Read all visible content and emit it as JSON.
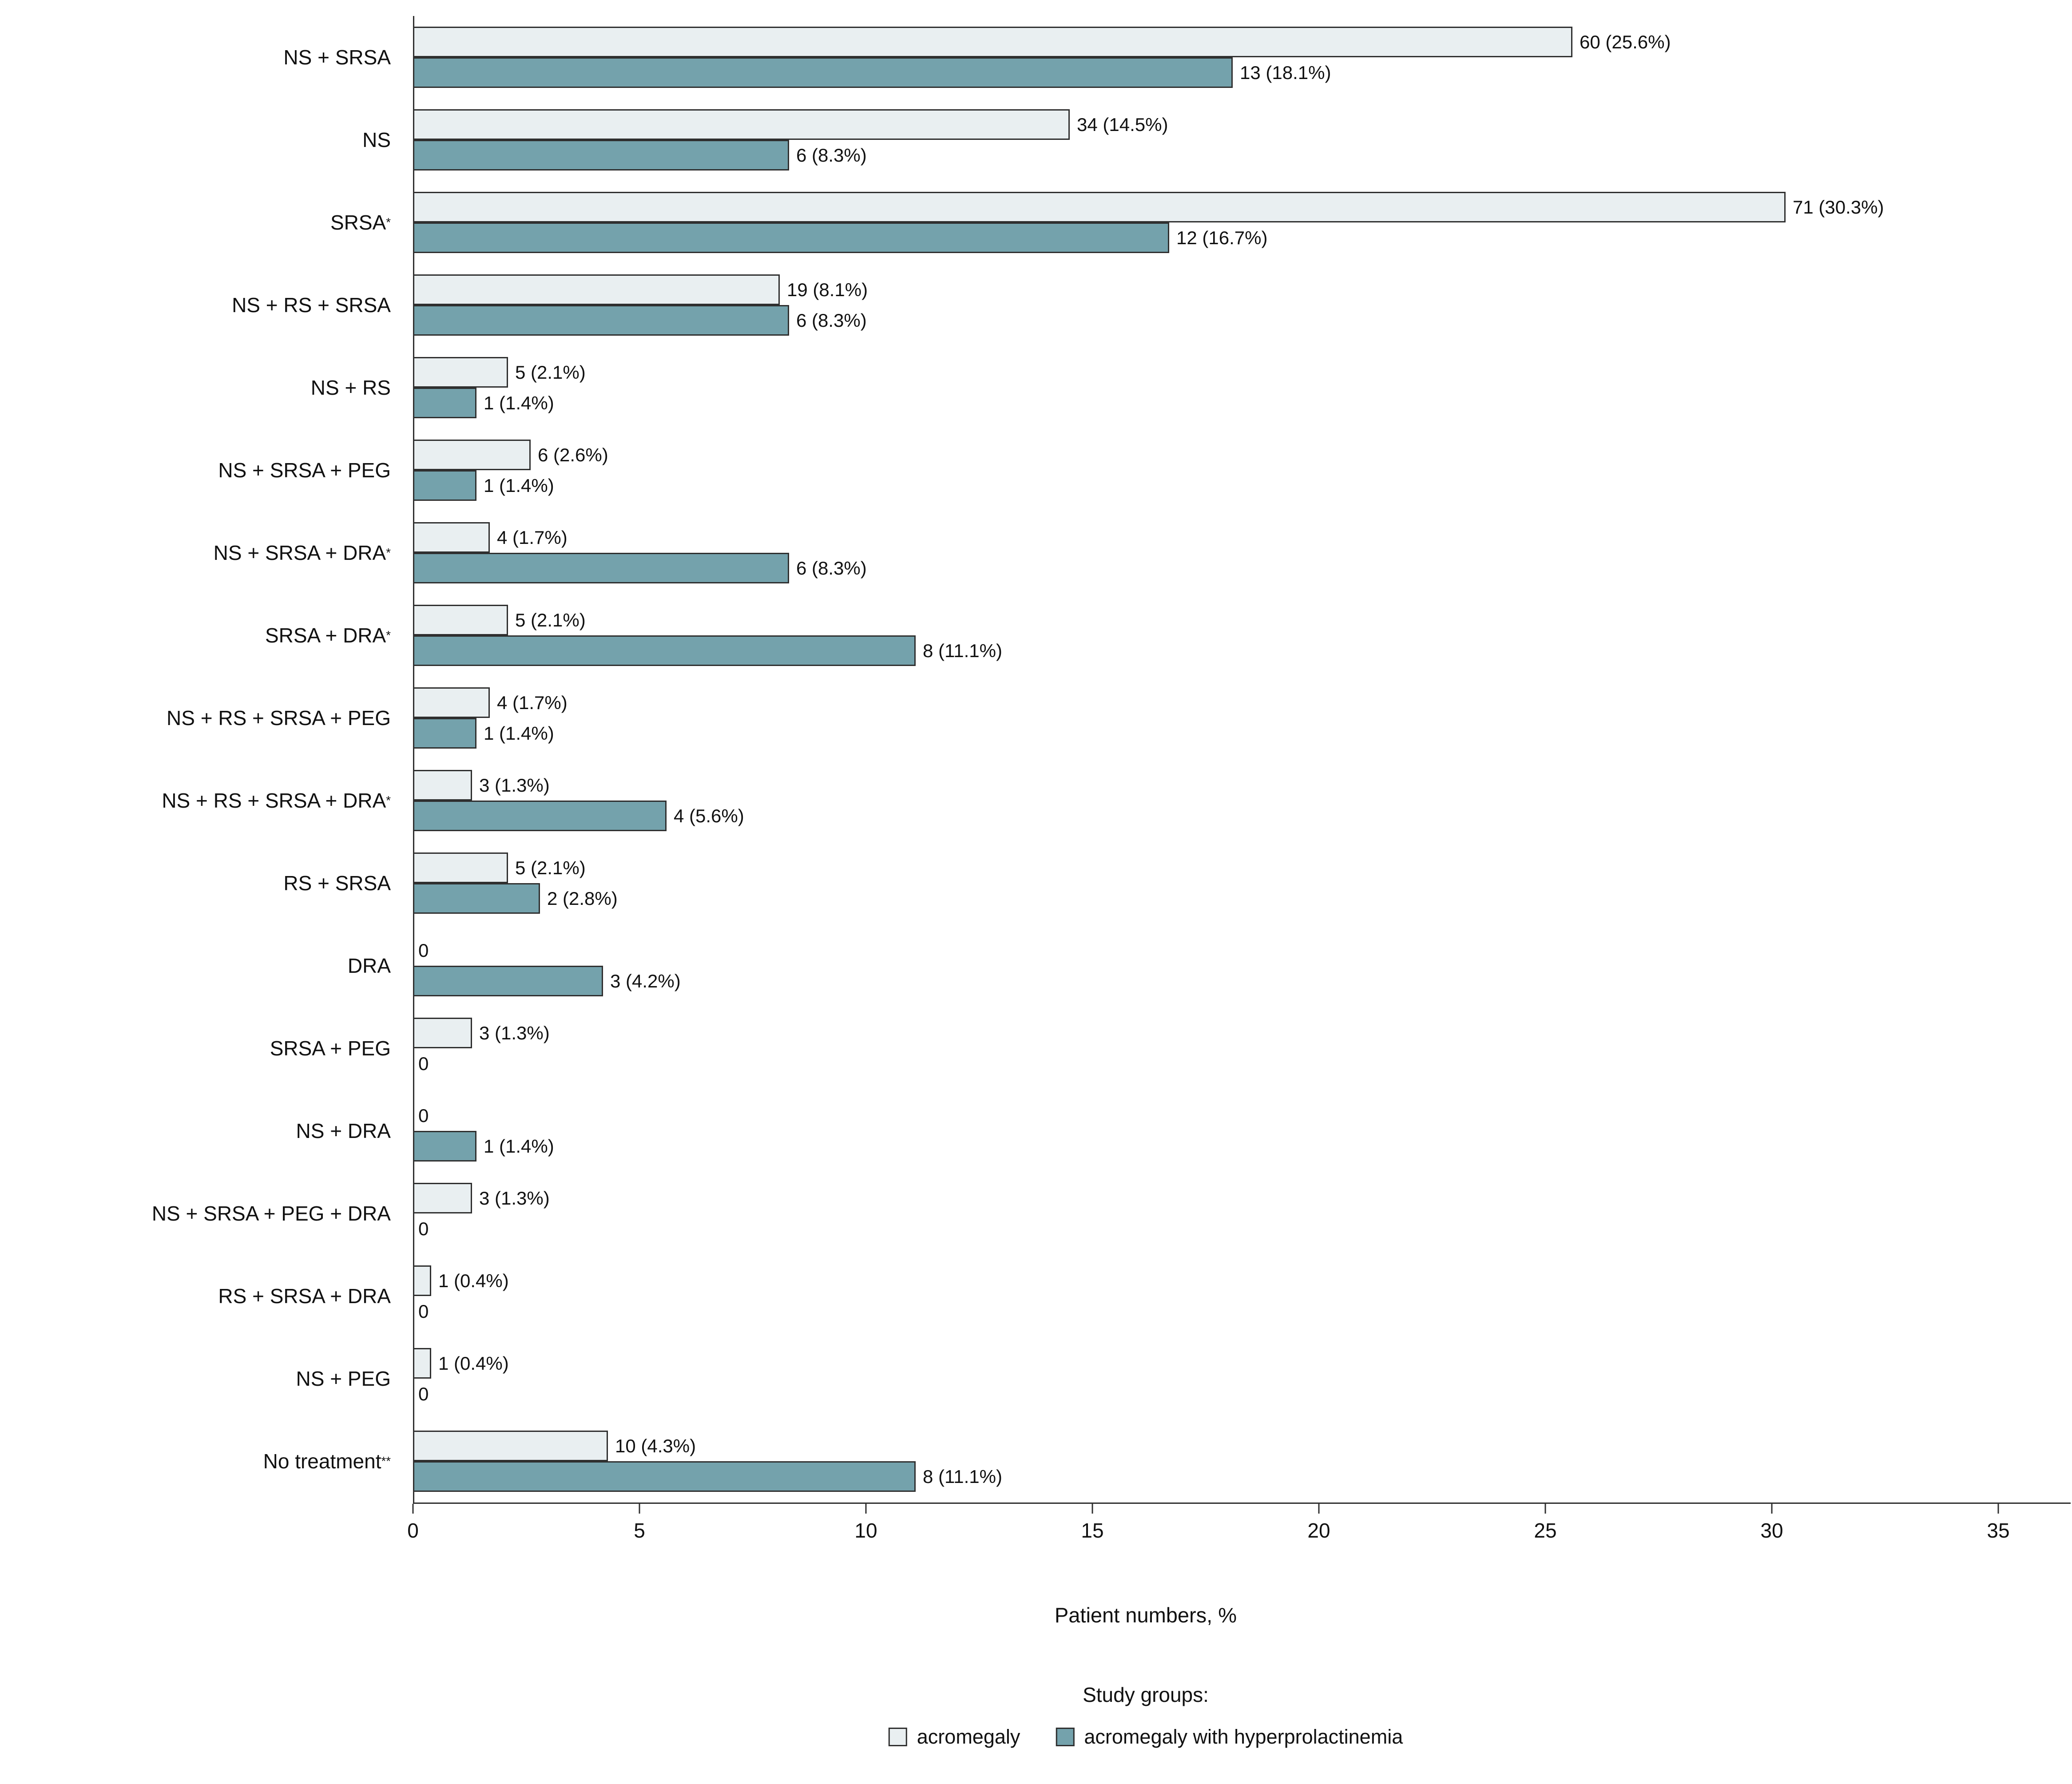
{
  "chart_data": {
    "type": "bar",
    "orientation": "horizontal",
    "title": "",
    "xlabel": "Patient numbers, %",
    "ylabel": "",
    "xlim": [
      0,
      36.5
    ],
    "xticks": [
      0,
      5,
      10,
      15,
      20,
      25,
      30,
      35
    ],
    "grid": false,
    "legend_position": "bottom",
    "legend_title": "Study groups:",
    "categories": [
      "NS + SRSA",
      "NS",
      "SRSA*",
      "NS + RS + SRSA",
      "NS + RS",
      "NS + SRSA + PEG",
      "NS + SRSA + DRA*",
      "SRSA + DRA*",
      "NS + RS + SRSA + PEG",
      "NS + RS + SRSA + DRA*",
      "RS + SRSA",
      "DRA",
      "SRSA + PEG",
      "NS + DRA",
      "NS + SRSA + PEG + DRA",
      "RS + SRSA + DRA",
      "NS + PEG",
      "No treatment**"
    ],
    "series": [
      {
        "name": "acromegaly",
        "color": "#e9eff1",
        "counts": [
          60,
          34,
          71,
          19,
          5,
          6,
          4,
          5,
          4,
          3,
          5,
          0,
          3,
          0,
          3,
          1,
          1,
          10
        ],
        "values": [
          25.6,
          14.5,
          30.3,
          8.1,
          2.1,
          2.6,
          1.7,
          2.1,
          1.7,
          1.3,
          2.1,
          0,
          1.3,
          0,
          1.3,
          0.4,
          0.4,
          4.3
        ],
        "labels": [
          "60 (25.6%)",
          "34 (14.5%)",
          "71 (30.3%)",
          "19 (8.1%)",
          "5 (2.1%)",
          "6 (2.6%)",
          "4 (1.7%)",
          "5 (2.1%)",
          "4 (1.7%)",
          "3 (1.3%)",
          "5 (2.1%)",
          "0",
          "3 (1.3%)",
          "0",
          "3 (1.3%)",
          "1 (0.4%)",
          "1 (0.4%)",
          "10 (4.3%)"
        ]
      },
      {
        "name": "acromegaly with hyperprolactinemia",
        "color": "#74a2ac",
        "counts": [
          13,
          6,
          12,
          6,
          1,
          1,
          6,
          8,
          1,
          4,
          2,
          3,
          0,
          1,
          0,
          0,
          0,
          8
        ],
        "values": [
          18.1,
          8.3,
          16.7,
          8.3,
          1.4,
          1.4,
          8.3,
          11.1,
          1.4,
          5.6,
          2.8,
          4.2,
          0,
          1.4,
          0,
          0,
          0,
          11.1
        ],
        "labels": [
          "13 (18.1%)",
          "6 (8.3%)",
          "12 (16.7%)",
          "6 (8.3%)",
          "1 (1.4%)",
          "1 (1.4%)",
          "6 (8.3%)",
          "8 (11.1%)",
          "1 (1.4%)",
          "4 (5.6%)",
          "2 (2.8%)",
          "3 (4.2%)",
          "0",
          "1 (1.4%)",
          "0",
          "0",
          "0",
          "8 (11.1%)"
        ]
      }
    ]
  }
}
